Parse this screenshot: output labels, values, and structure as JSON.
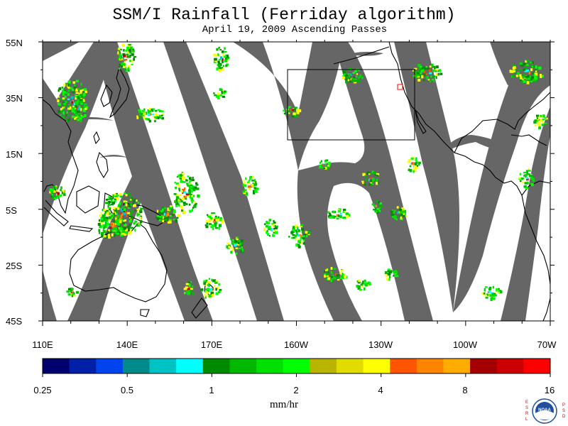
{
  "title": "SSM/I Rainfall (Ferriday algorithm)",
  "subtitle": "April 19, 2009  Ascending Passes",
  "lat_labels": [
    "55N",
    "35N",
    "15N",
    "5S",
    "25S",
    "45S"
  ],
  "lon_labels": [
    "110E",
    "140E",
    "170E",
    "160W",
    "130W",
    "100W",
    "70W"
  ],
  "colorbar": {
    "unit": "mm/hr",
    "tick_labels": [
      "0.25",
      "0.5",
      "1",
      "2",
      "4",
      "8",
      "16"
    ],
    "colors": [
      "#00006e",
      "#0020a8",
      "#0044ee",
      "#008a8a",
      "#00c4c4",
      "#00ffff",
      "#008a00",
      "#00b800",
      "#00e000",
      "#00ff00",
      "#b8b400",
      "#e0dc00",
      "#ffff00",
      "#ff5400",
      "#ff8400",
      "#ffac00",
      "#a40000",
      "#cc0000",
      "#ff0000"
    ]
  },
  "colors": {
    "no_data": "#666666",
    "coast": "#000000",
    "background": "#ffffff"
  },
  "logo": {
    "left_letters": "ESRL",
    "right_letters": "PSD",
    "text": "NOAA"
  }
}
